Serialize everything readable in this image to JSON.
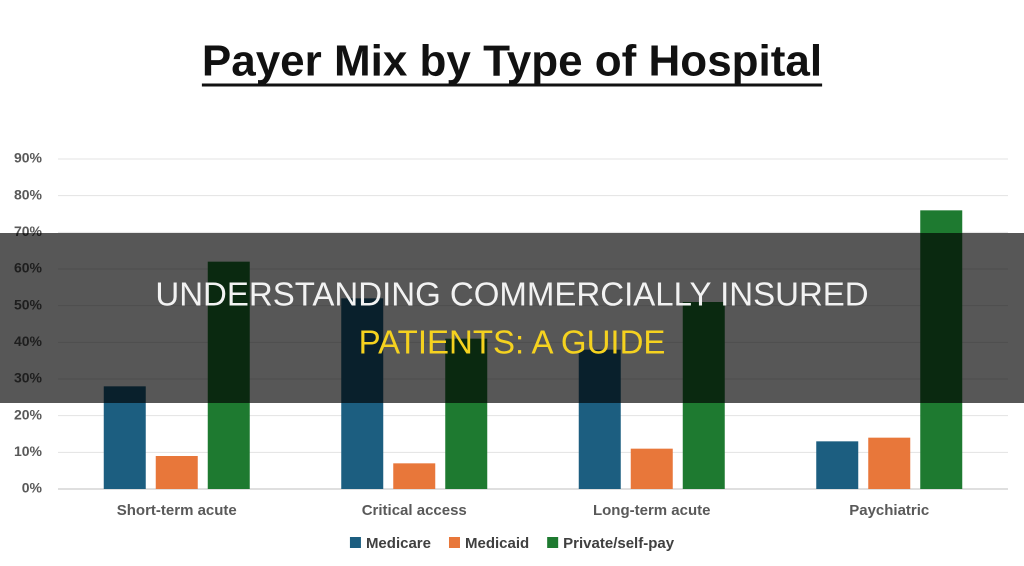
{
  "chart_data": {
    "type": "bar",
    "title": "Payer Mix by Type of Hospital",
    "categories": [
      "Short-term acute",
      "Critical access",
      "Long-term acute",
      "Paychiatric"
    ],
    "series": [
      {
        "name": "Medicare",
        "color": "#1c5e80",
        "values": [
          28,
          52,
          38,
          13
        ]
      },
      {
        "name": "Medicaid",
        "color": "#e8773a",
        "values": [
          9,
          7,
          11,
          14
        ]
      },
      {
        "name": "Private/self-pay",
        "color": "#1e7a30",
        "values": [
          62,
          41,
          51,
          76
        ]
      }
    ],
    "ylim": [
      0,
      90
    ],
    "yticks": [
      {
        "value": 0,
        "label": "0%"
      },
      {
        "value": 10,
        "label": "10%"
      },
      {
        "value": 20,
        "label": "20%"
      },
      {
        "value": 30,
        "label": "30%"
      },
      {
        "value": 40,
        "label": "40%"
      },
      {
        "value": 50,
        "label": "50%"
      },
      {
        "value": 60,
        "label": "60%"
      },
      {
        "value": 70,
        "label": "70%"
      },
      {
        "value": 80,
        "label": "80%"
      },
      {
        "value": 90,
        "label": "90%"
      }
    ],
    "grid": true,
    "legend": "bottom"
  },
  "banner": {
    "line1": "UNDERSTANDING COMMERCIALLY INSURED",
    "line2": "PATIENTS: A GUIDE"
  }
}
